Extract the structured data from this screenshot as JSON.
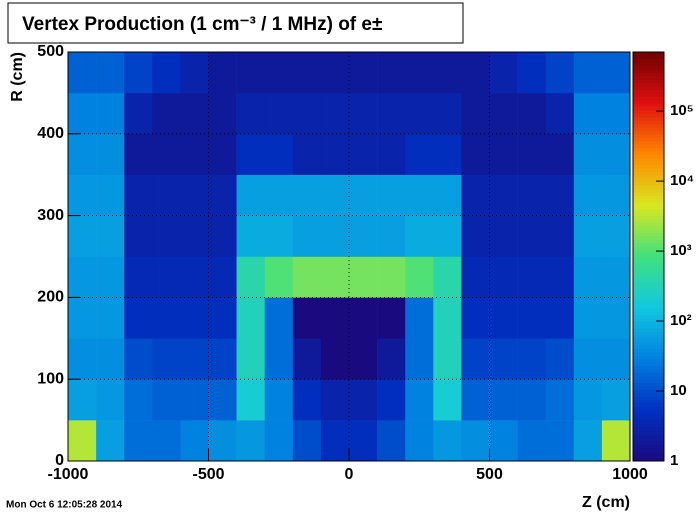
{
  "chart_data": {
    "type": "heatmap",
    "title": "Vertex Production (1 cm⁻³ / 1 MHz) of e±",
    "timestamp": "Mon Oct  6 12:05:28 2014",
    "x_label": "Z (cm)",
    "y_label": "R (cm)",
    "xbins": [
      -1000,
      -900,
      -800,
      -700,
      -600,
      -500,
      -400,
      -300,
      -200,
      -100,
      0,
      100,
      200,
      300,
      400,
      500,
      600,
      700,
      800,
      900,
      1000
    ],
    "ybins": [
      0,
      50,
      100,
      150,
      200,
      250,
      300,
      350,
      400,
      450,
      500
    ],
    "z": [
      [
        3000,
        60,
        20,
        20,
        30,
        40,
        50,
        30,
        10,
        5,
        5,
        10,
        30,
        50,
        40,
        30,
        20,
        20,
        60,
        3000
      ],
      [
        60,
        50,
        20,
        15,
        15,
        15,
        200,
        30,
        5,
        3,
        3,
        5,
        30,
        200,
        15,
        15,
        15,
        20,
        50,
        60
      ],
      [
        40,
        40,
        10,
        8,
        8,
        8,
        300,
        20,
        2,
        1,
        1,
        2,
        20,
        300,
        8,
        8,
        8,
        10,
        40,
        40
      ],
      [
        50,
        50,
        5,
        5,
        5,
        5,
        300,
        20,
        1,
        1,
        1,
        1,
        20,
        300,
        5,
        5,
        5,
        5,
        50,
        50
      ],
      [
        50,
        50,
        4,
        4,
        4,
        4,
        400,
        1000,
        1500,
        1500,
        1500,
        1500,
        1000,
        400,
        4,
        4,
        4,
        4,
        50,
        50
      ],
      [
        60,
        60,
        3,
        3,
        3,
        3,
        80,
        80,
        60,
        60,
        60,
        60,
        80,
        80,
        3,
        3,
        3,
        3,
        60,
        60
      ],
      [
        50,
        50,
        3,
        3,
        3,
        3,
        60,
        60,
        60,
        60,
        60,
        60,
        60,
        60,
        3,
        3,
        3,
        3,
        50,
        50
      ],
      [
        40,
        40,
        2,
        2,
        2,
        2,
        5,
        5,
        3,
        3,
        3,
        3,
        5,
        5,
        2,
        2,
        2,
        2,
        40,
        40
      ],
      [
        30,
        30,
        3,
        2,
        2,
        2,
        3,
        3,
        3,
        3,
        3,
        3,
        3,
        3,
        2,
        2,
        2,
        3,
        30,
        30
      ],
      [
        15,
        15,
        8,
        5,
        3,
        2,
        2,
        2,
        2,
        2,
        2,
        2,
        2,
        2,
        2,
        3,
        5,
        8,
        15,
        15
      ]
    ],
    "xlim": [
      -1000,
      1000
    ],
    "ylim": [
      0,
      500
    ],
    "xticks": [
      -1000,
      -500,
      0,
      500,
      1000
    ],
    "yticks": [
      0,
      100,
      200,
      300,
      400,
      500
    ],
    "zlim": [
      1,
      700000
    ],
    "zticks": [
      1,
      10,
      {
        "value": 100,
        "label": "10²"
      },
      {
        "value": 1000,
        "label": "10³"
      },
      {
        "value": 10000,
        "label": "10⁴"
      },
      {
        "value": 100000,
        "label": "10⁵"
      }
    ],
    "zlog": true,
    "grid": true,
    "palette": [
      "#1a0a80",
      "#0030c0",
      "#0080e0",
      "#10c8e0",
      "#40e080",
      "#d8e820",
      "#ff8800",
      "#e01010",
      "#700000"
    ]
  }
}
